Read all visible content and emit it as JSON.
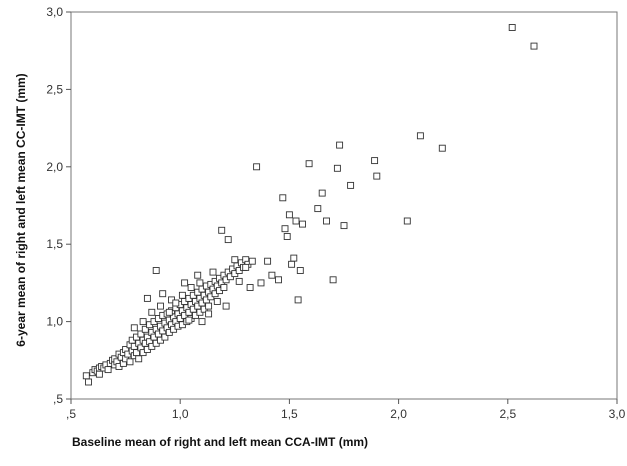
{
  "chart_data": {
    "type": "scatter",
    "xlabel": "Baseline mean of right and left mean CCA-IMT (mm)",
    "ylabel": "6-year mean of right and left mean CC-IMT (mm)",
    "xlim": [
      0.5,
      3.0
    ],
    "ylim": [
      0.5,
      3.0
    ],
    "xticks": [
      ",5",
      "1,0",
      "1,5",
      "2,0",
      "2,5",
      "3,0"
    ],
    "yticks": [
      ",5",
      "1,0",
      "1,5",
      "2,0",
      "2,5",
      "3,0"
    ],
    "grid": false,
    "marker": "open-square",
    "points": [
      [
        0.57,
        0.65
      ],
      [
        0.58,
        0.61
      ],
      [
        0.6,
        0.67
      ],
      [
        0.61,
        0.69
      ],
      [
        0.62,
        0.68
      ],
      [
        0.63,
        0.7
      ],
      [
        0.63,
        0.66
      ],
      [
        0.64,
        0.71
      ],
      [
        0.65,
        0.7
      ],
      [
        0.66,
        0.72
      ],
      [
        0.67,
        0.69
      ],
      [
        0.68,
        0.73
      ],
      [
        0.69,
        0.75
      ],
      [
        0.7,
        0.72
      ],
      [
        0.7,
        0.76
      ],
      [
        0.71,
        0.74
      ],
      [
        0.72,
        0.79
      ],
      [
        0.72,
        0.71
      ],
      [
        0.73,
        0.77
      ],
      [
        0.74,
        0.8
      ],
      [
        0.74,
        0.73
      ],
      [
        0.75,
        0.82
      ],
      [
        0.75,
        0.76
      ],
      [
        0.76,
        0.79
      ],
      [
        0.77,
        0.85
      ],
      [
        0.77,
        0.74
      ],
      [
        0.78,
        0.81
      ],
      [
        0.78,
        0.88
      ],
      [
        0.79,
        0.78
      ],
      [
        0.79,
        0.84
      ],
      [
        0.8,
        0.9
      ],
      [
        0.8,
        0.8
      ],
      [
        0.81,
        0.86
      ],
      [
        0.81,
        0.76
      ],
      [
        0.82,
        0.92
      ],
      [
        0.82,
        0.83
      ],
      [
        0.83,
        0.88
      ],
      [
        0.83,
        0.8
      ],
      [
        0.84,
        0.95
      ],
      [
        0.84,
        0.86
      ],
      [
        0.85,
        0.9
      ],
      [
        0.85,
        0.82
      ],
      [
        0.86,
        0.98
      ],
      [
        0.86,
        0.87
      ],
      [
        0.87,
        0.93
      ],
      [
        0.87,
        0.84
      ],
      [
        0.88,
        1.0
      ],
      [
        0.88,
        0.9
      ],
      [
        0.89,
        0.95
      ],
      [
        0.89,
        0.86
      ],
      [
        0.9,
        1.02
      ],
      [
        0.9,
        0.92
      ],
      [
        0.91,
        0.97
      ],
      [
        0.91,
        0.88
      ],
      [
        0.92,
        1.04
      ],
      [
        0.92,
        0.94
      ],
      [
        0.93,
        0.99
      ],
      [
        0.93,
        0.9
      ],
      [
        0.94,
        1.05
      ],
      [
        0.94,
        0.96
      ],
      [
        0.95,
        1.01
      ],
      [
        0.95,
        0.93
      ],
      [
        0.96,
        1.07
      ],
      [
        0.96,
        0.98
      ],
      [
        0.97,
        1.03
      ],
      [
        0.97,
        0.95
      ],
      [
        0.98,
        1.09
      ],
      [
        0.98,
        1.0
      ],
      [
        0.99,
        1.05
      ],
      [
        0.99,
        0.97
      ],
      [
        1.0,
        1.11
      ],
      [
        1.0,
        1.02
      ],
      [
        1.01,
        1.07
      ],
      [
        1.01,
        0.98
      ],
      [
        1.02,
        1.13
      ],
      [
        1.02,
        1.04
      ],
      [
        1.03,
        1.09
      ],
      [
        1.03,
        1.0
      ],
      [
        1.04,
        1.15
      ],
      [
        1.04,
        1.06
      ],
      [
        1.05,
        1.11
      ],
      [
        1.05,
        1.02
      ],
      [
        1.06,
        1.17
      ],
      [
        1.06,
        1.08
      ],
      [
        1.07,
        1.13
      ],
      [
        1.07,
        1.04
      ],
      [
        1.08,
        1.19
      ],
      [
        1.08,
        1.1
      ],
      [
        1.09,
        1.15
      ],
      [
        1.09,
        1.06
      ],
      [
        1.1,
        1.21
      ],
      [
        1.1,
        1.12
      ],
      [
        1.11,
        1.17
      ],
      [
        1.11,
        1.08
      ],
      [
        1.12,
        1.23
      ],
      [
        1.12,
        1.14
      ],
      [
        1.13,
        1.19
      ],
      [
        1.13,
        1.1
      ],
      [
        1.14,
        1.24
      ],
      [
        1.14,
        1.16
      ],
      [
        1.15,
        1.21
      ],
      [
        1.16,
        1.26
      ],
      [
        1.16,
        1.18
      ],
      [
        1.17,
        1.23
      ],
      [
        1.18,
        1.28
      ],
      [
        1.18,
        1.2
      ],
      [
        1.19,
        1.25
      ],
      [
        1.2,
        1.3
      ],
      [
        1.2,
        1.22
      ],
      [
        1.21,
        1.27
      ],
      [
        1.22,
        1.32
      ],
      [
        1.23,
        1.29
      ],
      [
        1.24,
        1.34
      ],
      [
        1.25,
        1.31
      ],
      [
        1.26,
        1.36
      ],
      [
        1.27,
        1.33
      ],
      [
        1.28,
        1.38
      ],
      [
        1.29,
        1.35
      ],
      [
        1.3,
        1.4
      ],
      [
        1.31,
        1.37
      ],
      [
        0.85,
        1.15
      ],
      [
        0.89,
        1.33
      ],
      [
        0.92,
        1.18
      ],
      [
        0.96,
        1.14
      ],
      [
        1.02,
        1.25
      ],
      [
        1.08,
        1.3
      ],
      [
        1.15,
        1.32
      ],
      [
        1.19,
        1.59
      ],
      [
        1.22,
        1.53
      ],
      [
        1.25,
        1.4
      ],
      [
        1.3,
        1.35
      ],
      [
        1.33,
        1.39
      ],
      [
        1.35,
        2.0
      ],
      [
        1.37,
        1.25
      ],
      [
        1.4,
        1.39
      ],
      [
        1.42,
        1.3
      ],
      [
        1.45,
        1.27
      ],
      [
        1.47,
        1.8
      ],
      [
        1.48,
        1.6
      ],
      [
        1.49,
        1.55
      ],
      [
        1.5,
        1.69
      ],
      [
        1.51,
        1.37
      ],
      [
        1.52,
        1.41
      ],
      [
        1.53,
        1.65
      ],
      [
        1.54,
        1.14
      ],
      [
        1.55,
        1.33
      ],
      [
        1.56,
        1.63
      ],
      [
        1.59,
        2.02
      ],
      [
        1.63,
        1.73
      ],
      [
        1.65,
        1.83
      ],
      [
        1.67,
        1.65
      ],
      [
        1.7,
        1.27
      ],
      [
        1.72,
        1.99
      ],
      [
        1.73,
        2.14
      ],
      [
        1.75,
        1.62
      ],
      [
        1.78,
        1.88
      ],
      [
        1.89,
        2.04
      ],
      [
        1.9,
        1.94
      ],
      [
        2.04,
        1.65
      ],
      [
        2.1,
        2.2
      ],
      [
        2.2,
        2.12
      ],
      [
        2.52,
        2.9
      ],
      [
        2.62,
        2.78
      ],
      [
        0.98,
        1.12
      ],
      [
        1.04,
        1.01
      ],
      [
        1.1,
        1.0
      ],
      [
        1.13,
        1.05
      ],
      [
        1.17,
        1.13
      ],
      [
        1.21,
        1.1
      ],
      [
        1.27,
        1.26
      ],
      [
        1.32,
        1.22
      ],
      [
        0.79,
        0.96
      ],
      [
        0.83,
        1.0
      ],
      [
        0.87,
        1.06
      ],
      [
        0.91,
        1.1
      ],
      [
        0.95,
        1.06
      ],
      [
        1.01,
        1.17
      ],
      [
        1.05,
        1.22
      ],
      [
        1.09,
        1.25
      ]
    ]
  }
}
